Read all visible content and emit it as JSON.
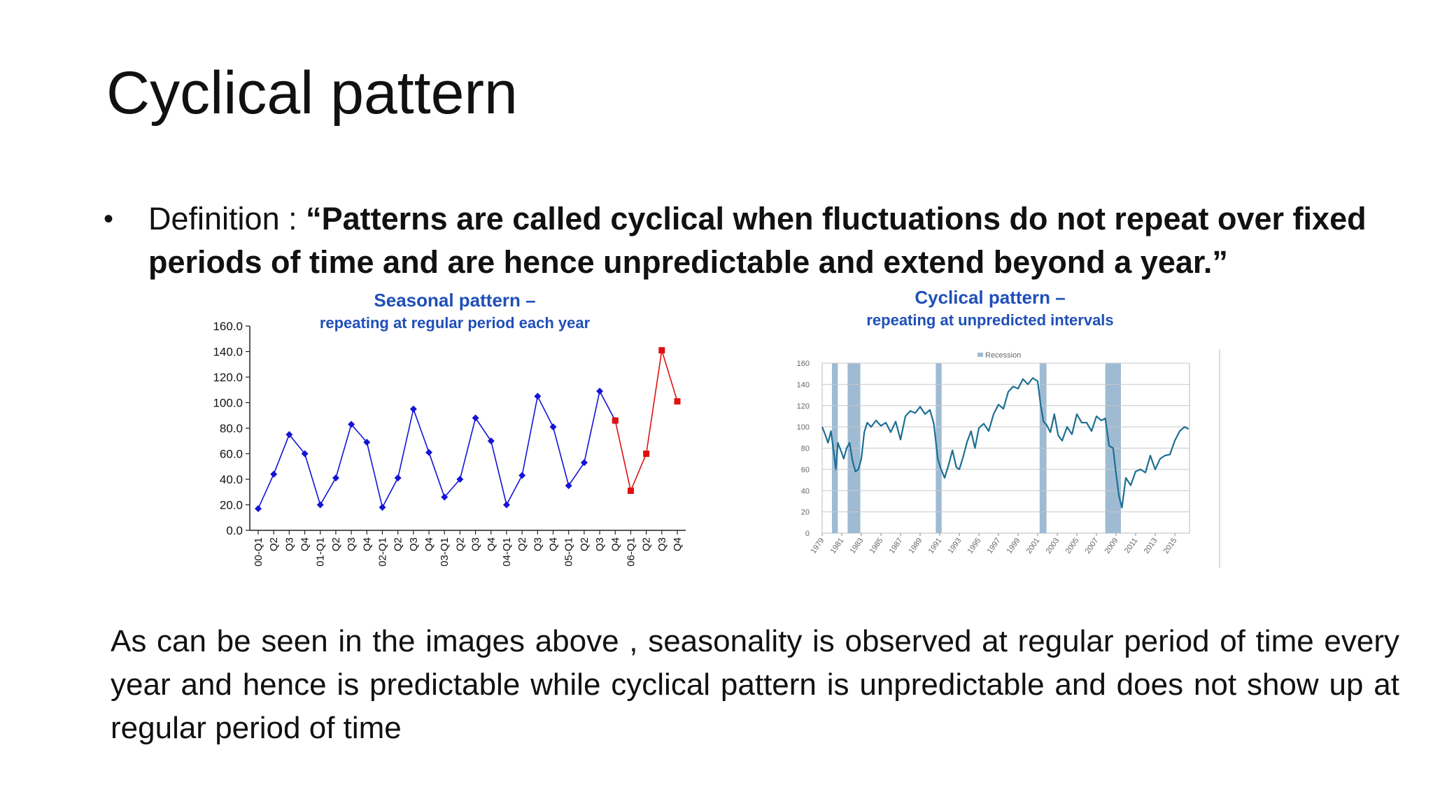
{
  "slide": {
    "title": "Cyclical pattern",
    "definition_label": "Definition : ",
    "definition_quote": "“Patterns are called cyclical when fluctuations do not repeat over fixed periods of time and are hence unpredictable and extend beyond a year.”",
    "conclusion": "As can be seen in the images above , seasonality is observed at regular period of time every year and hence is predictable while cyclical pattern is unpredictable and does not show up at regular period of time"
  },
  "captions": {
    "seasonal_title": "Seasonal pattern –",
    "seasonal_sub": "repeating at regular period each year",
    "cyclical_title": "Cyclical pattern –",
    "cyclical_sub": "repeating at unpredicted intervals"
  },
  "chart_data": [
    {
      "type": "line",
      "categories": [
        "00-Q1",
        "Q2",
        "Q3",
        "Q4",
        "01-Q1",
        "Q2",
        "Q3",
        "Q4",
        "02-Q1",
        "Q2",
        "Q3",
        "Q4",
        "03-Q1",
        "Q2",
        "Q3",
        "Q4",
        "04-Q1",
        "Q2",
        "Q3",
        "Q4",
        "05-Q1",
        "Q2",
        "Q3",
        "Q4",
        "06-Q1",
        "Q2",
        "Q3",
        "Q4"
      ],
      "series": [
        {
          "values": [
            17,
            44,
            75,
            60,
            20,
            41,
            83,
            69,
            18,
            41,
            95,
            61,
            26,
            40,
            88,
            70,
            20,
            43,
            105,
            81,
            35,
            53,
            109,
            86,
            null,
            null,
            null,
            null
          ],
          "color": "#1414d6"
        },
        {
          "values": [
            null,
            null,
            null,
            null,
            null,
            null,
            null,
            null,
            null,
            null,
            null,
            null,
            null,
            null,
            null,
            null,
            null,
            null,
            null,
            null,
            null,
            null,
            null,
            86,
            31,
            60,
            141,
            101
          ],
          "color": "#e01010"
        }
      ],
      "yticks": [
        "0.0",
        "20.0",
        "40.0",
        "60.0",
        "80.0",
        "100.0",
        "120.0",
        "140.0",
        "160.0"
      ],
      "ylim": [
        0,
        160
      ],
      "grid": false
    },
    {
      "type": "line",
      "legend": {
        "label": "Recession",
        "position": "top-center"
      },
      "x_labels": [
        "1979",
        "1981",
        "1983",
        "1985",
        "1987",
        "1989",
        "1991",
        "1993",
        "1995",
        "1997",
        "1999",
        "2001",
        "2003",
        "2005",
        "2007",
        "2009",
        "2011",
        "2013",
        "2015"
      ],
      "xlim": [
        1979,
        2016.5
      ],
      "ylim": [
        0,
        160
      ],
      "yticks": [
        "0",
        "20",
        "40",
        "60",
        "80",
        "100",
        "120",
        "140",
        "160"
      ],
      "grid": true,
      "line_color": "#1d6f93",
      "recession_color": "#9fbbd3",
      "recessions": [
        [
          1980.0,
          1980.6
        ],
        [
          1981.6,
          1982.9
        ],
        [
          1990.6,
          1991.2
        ],
        [
          2001.2,
          2001.9
        ],
        [
          2007.9,
          2009.5
        ]
      ],
      "x": [
        1979.0,
        1979.3,
        1979.6,
        1979.9,
        1980.2,
        1980.4,
        1980.6,
        1980.9,
        1981.2,
        1981.5,
        1981.8,
        1982.1,
        1982.4,
        1982.7,
        1983.0,
        1983.3,
        1983.6,
        1984.0,
        1984.5,
        1985.0,
        1985.5,
        1986.0,
        1986.5,
        1987.0,
        1987.5,
        1988.0,
        1988.5,
        1989.0,
        1989.5,
        1990.0,
        1990.4,
        1990.8,
        1991.1,
        1991.5,
        1991.9,
        1992.3,
        1992.7,
        1993.0,
        1993.4,
        1993.8,
        1994.2,
        1994.6,
        1995.0,
        1995.5,
        1996.0,
        1996.5,
        1997.0,
        1997.5,
        1998.0,
        1998.5,
        1999.0,
        1999.5,
        2000.0,
        2000.5,
        2001.0,
        2001.3,
        2001.6,
        2001.9,
        2002.3,
        2002.7,
        2003.1,
        2003.5,
        2004.0,
        2004.5,
        2005.0,
        2005.5,
        2006.0,
        2006.5,
        2007.0,
        2007.5,
        2007.9,
        2008.3,
        2008.7,
        2009.0,
        2009.3,
        2009.6,
        2010.0,
        2010.5,
        2011.0,
        2011.5,
        2012.0,
        2012.5,
        2013.0,
        2013.5,
        2014.0,
        2014.5,
        2015.0,
        2015.5,
        2016.0,
        2016.4
      ],
      "values": [
        100,
        93,
        85,
        96,
        75,
        60,
        85,
        78,
        70,
        80,
        85,
        68,
        58,
        60,
        70,
        95,
        104,
        100,
        106,
        101,
        104,
        95,
        105,
        88,
        110,
        115,
        113,
        119,
        112,
        116,
        103,
        70,
        61,
        52,
        64,
        78,
        62,
        60,
        72,
        86,
        96,
        80,
        99,
        103,
        96,
        112,
        121,
        117,
        133,
        138,
        136,
        145,
        140,
        146,
        143,
        121,
        105,
        102,
        95,
        112,
        92,
        87,
        100,
        93,
        112,
        104,
        104,
        96,
        110,
        106,
        108,
        82,
        80,
        56,
        35,
        24,
        52,
        45,
        58,
        60,
        57,
        73,
        60,
        70,
        73,
        74,
        87,
        96,
        100,
        98
      ]
    }
  ]
}
